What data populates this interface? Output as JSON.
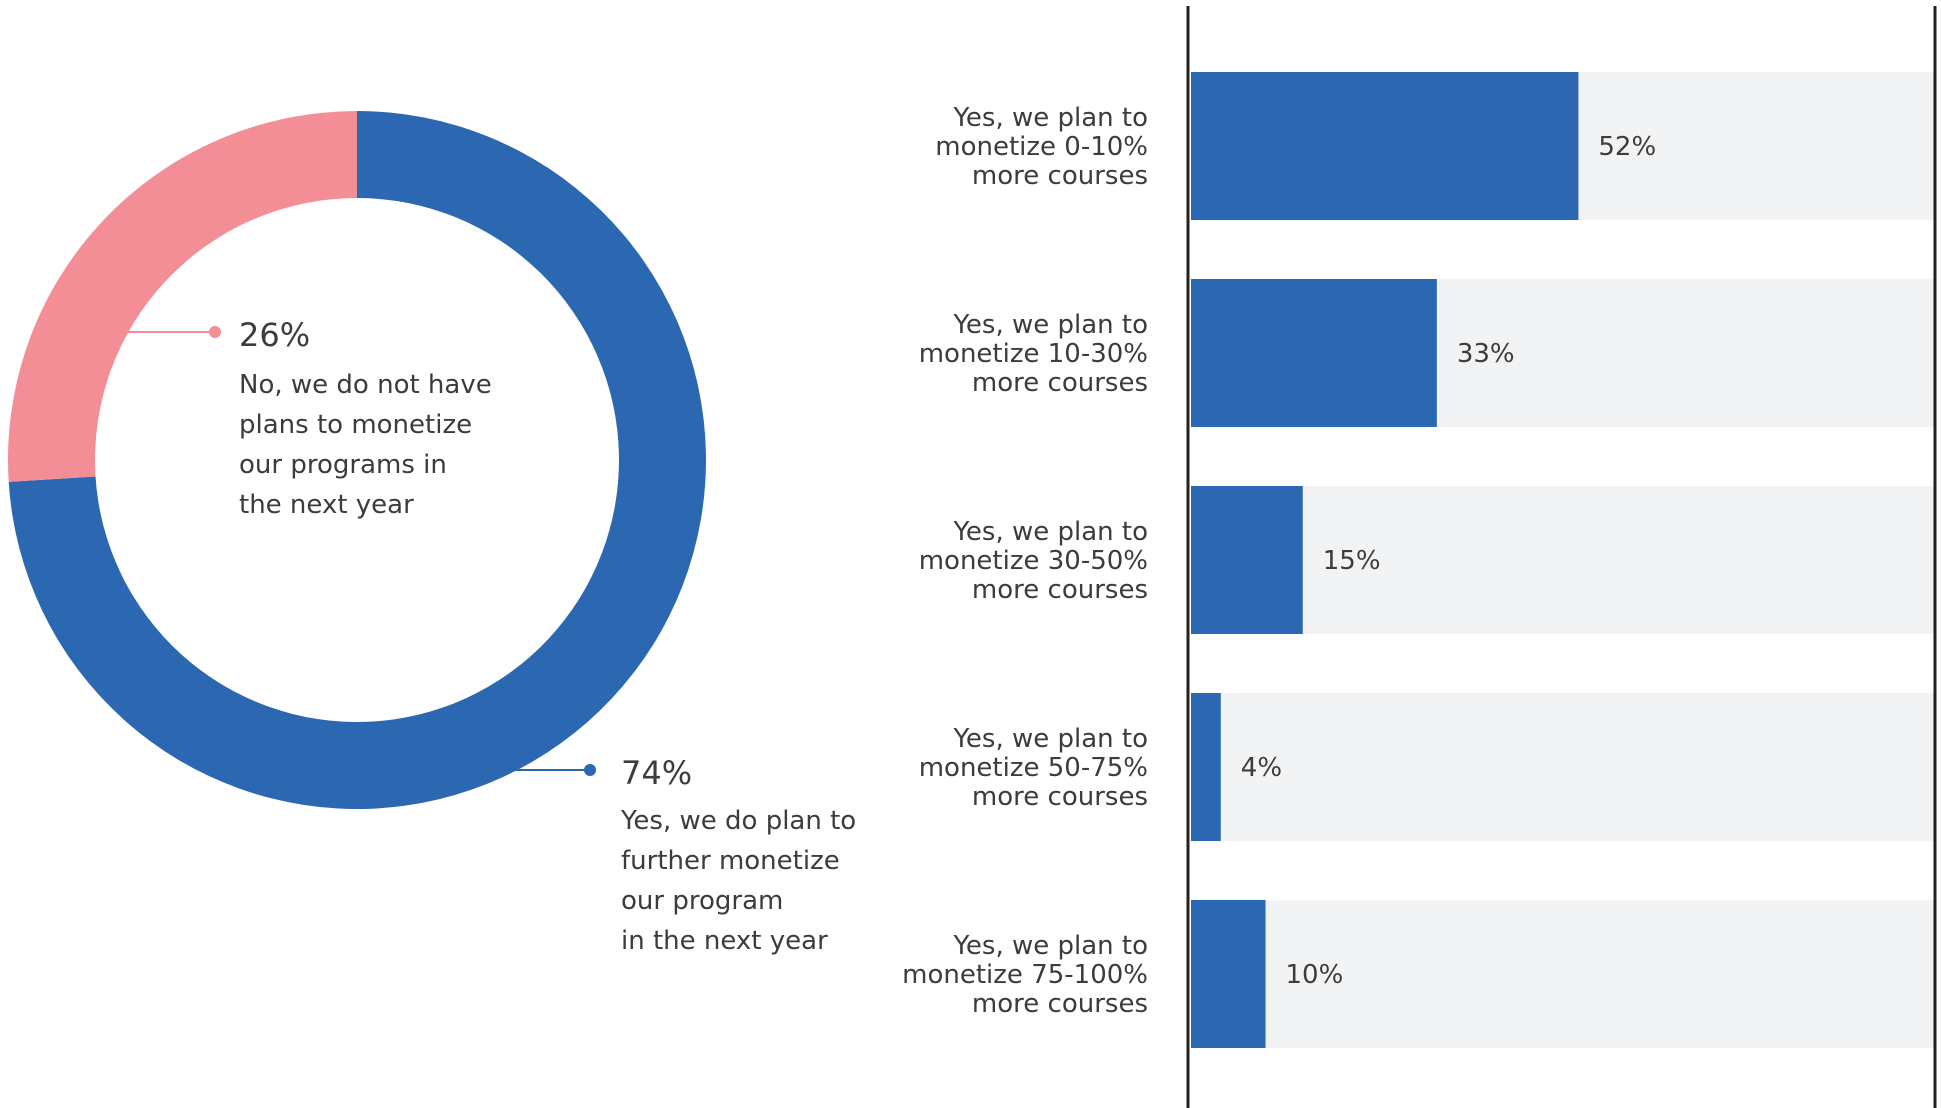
{
  "colors": {
    "primary": "#2c67b1",
    "secondary": "#f48e96",
    "track": "#f2f3f5",
    "axis": "#222222",
    "text": "#3c3c3c"
  },
  "chart_data": [
    {
      "type": "pie",
      "variant": "donut",
      "slices": [
        {
          "value": 74,
          "label": "74%",
          "description": [
            "Yes, we do plan to",
            "further monetize",
            "our program",
            "in the next year"
          ],
          "color": "#2c67b1"
        },
        {
          "value": 26,
          "label": "26%",
          "description": [
            "No, we do not have",
            "plans to monetize",
            "our programs in",
            "the next year"
          ],
          "color": "#f48e96"
        }
      ]
    },
    {
      "type": "bar",
      "orientation": "horizontal",
      "xlim": [
        0,
        100
      ],
      "grid": false,
      "categories": [
        [
          "Yes, we plan to",
          "monetize 0-10%",
          "more courses"
        ],
        [
          "Yes, we plan to",
          "monetize 10-30%",
          "more courses"
        ],
        [
          "Yes, we plan to",
          "monetize 30-50%",
          "more courses"
        ],
        [
          "Yes, we plan to",
          "monetize 50-75%",
          "more courses"
        ],
        [
          "Yes, we plan to",
          "monetize 75-100%",
          "more courses"
        ]
      ],
      "values": [
        52,
        33,
        15,
        4,
        10
      ],
      "value_labels": [
        "52%",
        "33%",
        "15%",
        "4%",
        "10%"
      ]
    }
  ]
}
